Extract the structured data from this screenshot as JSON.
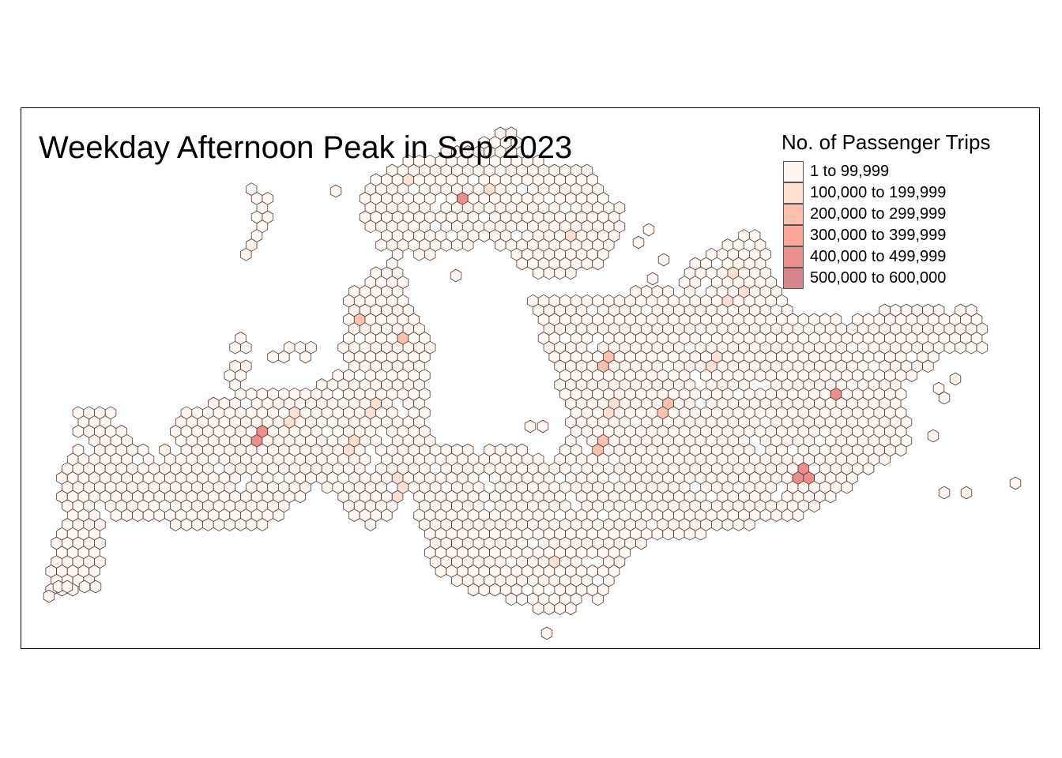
{
  "map": {
    "title": "Weekday Afternoon Peak in Sep 2023",
    "stroke_color": "#4a3a3a",
    "legend": {
      "title": "No. of Passenger Trips",
      "classes": [
        {
          "label": "1 to 99,999",
          "color": "#fff5f0"
        },
        {
          "label": "100,000 to 199,999",
          "color": "#fde0d2"
        },
        {
          "label": "200,000 to 299,999",
          "color": "#fcc1ac"
        },
        {
          "label": "300,000 to 399,999",
          "color": "#f8a796"
        },
        {
          "label": "400,000 to 499,999",
          "color": "#ec8f8a"
        },
        {
          "label": "500,000 to 600,000",
          "color": "#d4868b"
        }
      ]
    }
  }
}
